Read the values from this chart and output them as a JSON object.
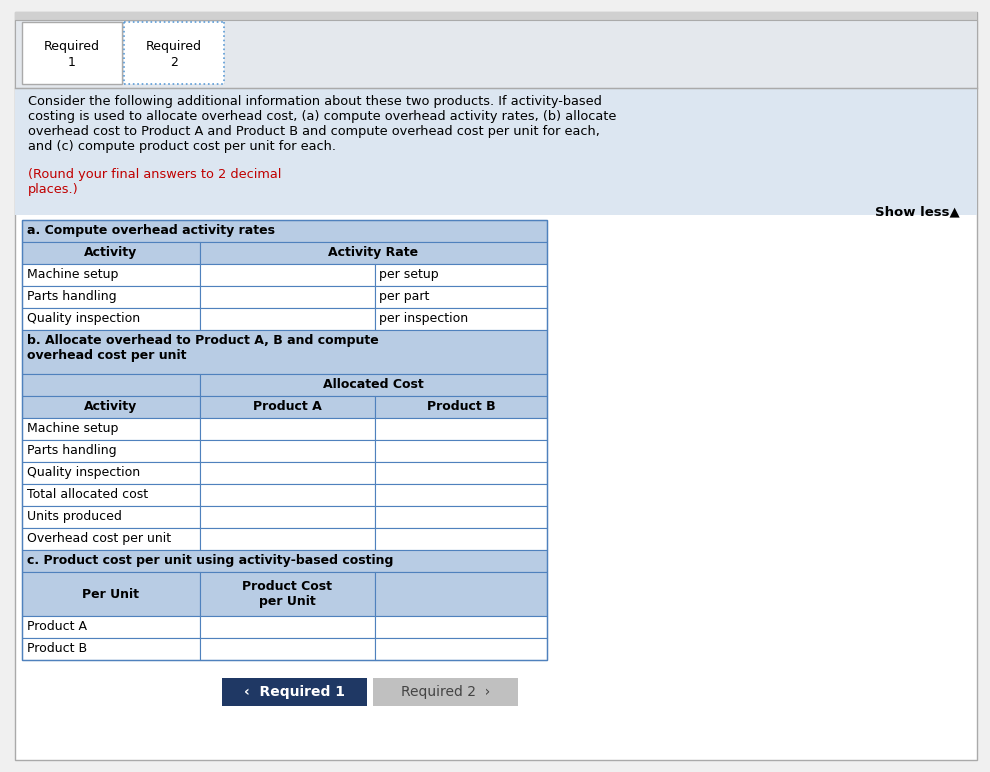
{
  "fig_w": 9.9,
  "fig_h": 7.72,
  "dpi": 100,
  "bg_page": "#f0f0f0",
  "bg_white": "#ffffff",
  "bg_light_gray": "#e8e8e8",
  "bg_light_blue": "#dce6f1",
  "bg_header_blue": "#b8cce4",
  "bg_tab": "#e8eef5",
  "border_blue": "#4f81bd",
  "border_gray": "#aaaaaa",
  "tab_dot_color": "#5b9bd5",
  "text_black": "#000000",
  "text_red": "#c00000",
  "text_white": "#ffffff",
  "text_gray": "#666666",
  "btn1_bg": "#1f3864",
  "btn2_bg": "#c0c0c0",
  "intro_black": "Consider the following additional information about these two products. If activity-based\ncosting is used to allocate overhead cost, (a) compute overhead activity rates, (b) allocate\noverhead cost to Product A and Product B and compute overhead cost per unit for each,\nand (c) compute product cost per unit for each.",
  "intro_red": "(Round your final answers to 2 decimal\nplaces.)",
  "show_less": "Show less▲",
  "sec_a_hdr": "a. Compute overhead activity rates",
  "sec_a_col1": "Activity",
  "sec_a_col2": "Activity Rate",
  "sec_a_rows": [
    [
      "Machine setup",
      "per setup"
    ],
    [
      "Parts handling",
      "per part"
    ],
    [
      "Quality inspection",
      "per inspection"
    ]
  ],
  "sec_b_hdr": "b. Allocate overhead to Product A, B and compute\noverhead cost per unit",
  "sec_b_sub": "Allocated Cost",
  "sec_b_col1": "Activity",
  "sec_b_col2": "Product A",
  "sec_b_col3": "Product B",
  "sec_b_rows": [
    "Machine setup",
    "Parts handling",
    "Quality inspection",
    "Total allocated cost",
    "Units produced",
    "Overhead cost per unit"
  ],
  "sec_c_hdr": "c. Product cost per unit using activity-based costing",
  "sec_c_col1": "Per Unit",
  "sec_c_col2": "Product Cost\nper Unit",
  "sec_c_rows": [
    "Product A",
    "Product B"
  ],
  "btn1_text": "‹  Required 1",
  "btn2_text": "Required 2  ›"
}
